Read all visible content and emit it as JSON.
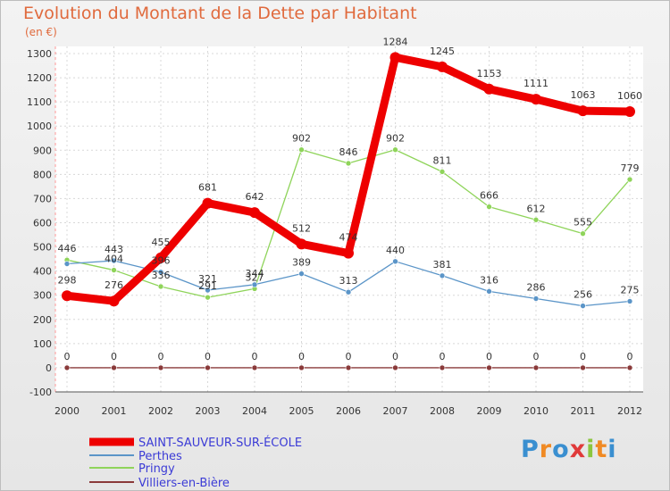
{
  "title": "Evolution du Montant de la Dette par Habitant",
  "subtitle": "(en €)",
  "logo": {
    "letters": [
      "P",
      "r",
      "o",
      "x",
      "i",
      "t",
      "i"
    ],
    "colors": [
      "#3a8fd0",
      "#f08a24",
      "#3a8fd0",
      "#e03a3a",
      "#8cc63f",
      "#f08a24",
      "#3a8fd0"
    ]
  },
  "chart_data": {
    "type": "line",
    "x": [
      "2000",
      "2001",
      "2002",
      "2003",
      "2004",
      "2005",
      "2006",
      "2007",
      "2008",
      "2009",
      "2010",
      "2011",
      "2012"
    ],
    "yticks": [
      "-100",
      "0",
      "100",
      "200",
      "300",
      "400",
      "500",
      "600",
      "700",
      "800",
      "900",
      "1000",
      "1100",
      "1200",
      "1300"
    ],
    "ylim": [
      -100,
      1300
    ],
    "grid": true,
    "legend_position": "bottom-left",
    "series": [
      {
        "name": "SAINT-SAUVEUR-SUR-ÉCOLE",
        "color": "#ee0000",
        "values": [
          298,
          276,
          455,
          681,
          642,
          512,
          474,
          1284,
          1245,
          1153,
          1111,
          1063,
          1060
        ],
        "labels": [
          "298",
          "276",
          "455",
          "681",
          "642",
          "512",
          "474",
          "1284",
          "1245",
          "1153",
          "1111",
          "1063",
          "1060"
        ]
      },
      {
        "name": "Perthes",
        "color": "#5b95c8",
        "values": [
          430,
          443,
          396,
          321,
          344,
          389,
          313,
          440,
          381,
          316,
          286,
          256,
          275
        ],
        "labels": [
          "",
          "443",
          "396",
          "321",
          "344",
          "389",
          "313",
          "440",
          "381",
          "316",
          "286",
          "256",
          "275"
        ]
      },
      {
        "name": "Pringy",
        "color": "#8fd45a",
        "values": [
          446,
          404,
          336,
          291,
          327,
          902,
          846,
          902,
          811,
          666,
          612,
          555,
          779
        ],
        "labels": [
          "446",
          "404",
          "336",
          "291",
          "327",
          "902",
          "846",
          "902",
          "811",
          "666",
          "612",
          "555",
          "779"
        ]
      },
      {
        "name": "Villiers-en-Bière",
        "color": "#8a3a3a",
        "values": [
          0,
          0,
          0,
          0,
          0,
          0,
          0,
          0,
          0,
          0,
          0,
          0,
          0
        ],
        "labels": [
          "0",
          "0",
          "0",
          "0",
          "0",
          "0",
          "0",
          "0",
          "0",
          "0",
          "0",
          "0",
          "0"
        ]
      }
    ]
  }
}
